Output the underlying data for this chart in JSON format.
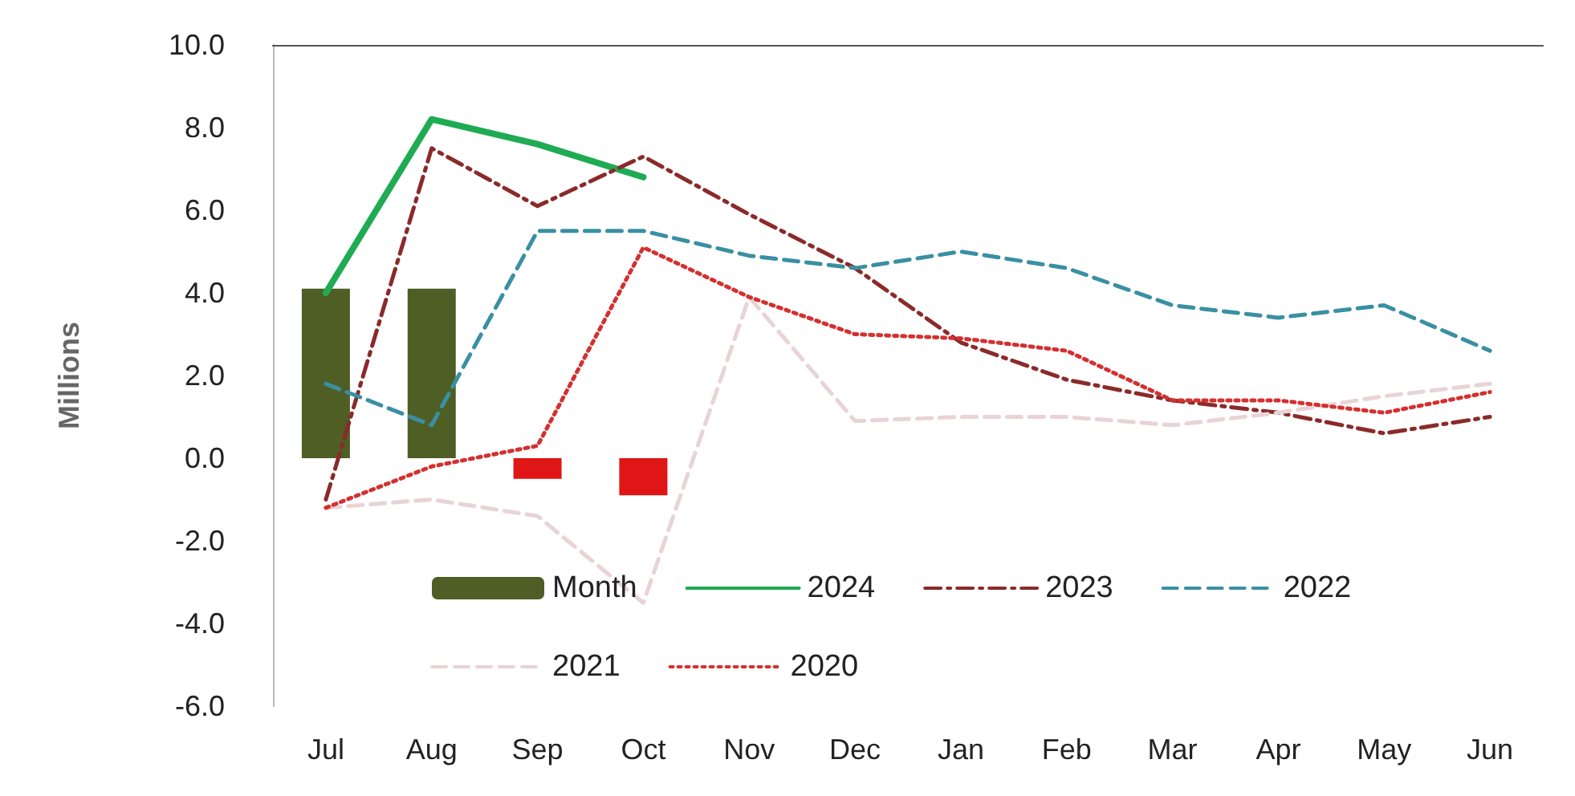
{
  "chart_data": {
    "type": "line",
    "ylabel": "Millions",
    "categories": [
      "Jul",
      "Aug",
      "Sep",
      "Oct",
      "Nov",
      "Dec",
      "Jan",
      "Feb",
      "Mar",
      "Apr",
      "May",
      "Jun"
    ],
    "series": [
      {
        "name": "Month",
        "type": "bar",
        "color": "#4e5e24",
        "colors": [
          "#4e5e24",
          "#4e5e24",
          "#e01515",
          "#e01515",
          null,
          null,
          null,
          null,
          null,
          null,
          null,
          null
        ],
        "values": [
          4.1,
          4.1,
          -0.5,
          -0.9,
          null,
          null,
          null,
          null,
          null,
          null,
          null,
          null
        ]
      },
      {
        "name": "2024",
        "color": "#1fab52",
        "line_style": "solid",
        "values": [
          4.0,
          8.2,
          7.6,
          6.8,
          null,
          null,
          null,
          null,
          null,
          null,
          null,
          null
        ]
      },
      {
        "name": "2023",
        "color": "#8b2a2a",
        "line_style": "dashdot",
        "values": [
          -1.0,
          7.5,
          6.1,
          7.3,
          5.9,
          4.6,
          2.8,
          1.9,
          1.4,
          1.1,
          0.6,
          1.0
        ]
      },
      {
        "name": "2022",
        "color": "#3a8fa3",
        "line_style": "dashed",
        "values": [
          1.8,
          0.8,
          5.5,
          5.5,
          4.9,
          4.6,
          5.0,
          4.6,
          3.7,
          3.4,
          3.7,
          2.6
        ]
      },
      {
        "name": "2021",
        "color": "#e8d3d6",
        "line_style": "dashed",
        "values": [
          -1.2,
          -1.0,
          -1.4,
          -3.5,
          3.9,
          0.9,
          1.0,
          1.0,
          0.8,
          1.1,
          1.5,
          1.8
        ]
      },
      {
        "name": "2020",
        "color": "#d43030",
        "line_style": "dotted",
        "values": [
          -1.2,
          -0.2,
          0.3,
          5.1,
          3.9,
          3.0,
          2.9,
          2.6,
          1.4,
          1.4,
          1.1,
          1.6
        ]
      }
    ],
    "ylim": [
      -6,
      10
    ],
    "yticks": [
      {
        "value": -6,
        "label": "-6.0"
      },
      {
        "value": -4,
        "label": "-4.0"
      },
      {
        "value": -2,
        "label": "-2.0"
      },
      {
        "value": 0,
        "label": "0.0"
      },
      {
        "value": 2,
        "label": "2.0"
      },
      {
        "value": 4,
        "label": "4.0"
      },
      {
        "value": 6,
        "label": "6.0"
      },
      {
        "value": 8,
        "label": "8.0"
      },
      {
        "value": 10,
        "label": "10.0"
      }
    ],
    "grid": false,
    "legend": "bottom",
    "marker": "none"
  }
}
